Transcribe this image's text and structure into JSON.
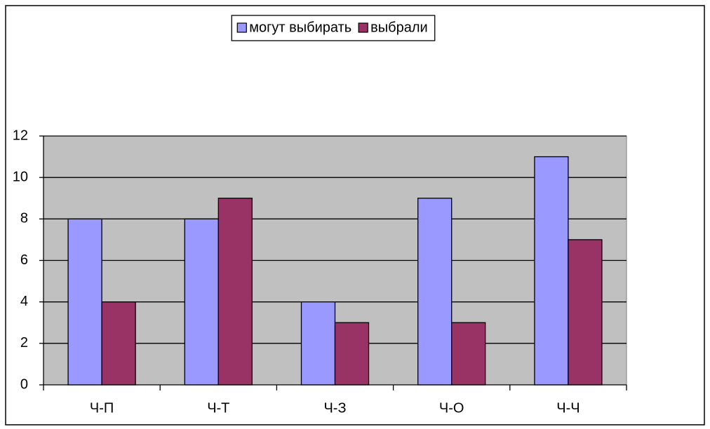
{
  "chart_data": {
    "type": "bar",
    "categories": [
      "Ч-П",
      "Ч-Т",
      "Ч-З",
      "Ч-О",
      "Ч-Ч"
    ],
    "series": [
      {
        "name": "могут выбирать",
        "color": "#9999ff",
        "values": [
          8,
          8,
          4,
          9,
          11
        ]
      },
      {
        "name": "выбрали",
        "color": "#993366",
        "values": [
          4,
          9,
          3,
          3,
          7
        ]
      }
    ],
    "ylim": [
      0,
      12
    ],
    "yticks": [
      0,
      2,
      4,
      6,
      8,
      10,
      12
    ],
    "grid": true,
    "legend": "top",
    "plot_background": "#c0c0c0"
  }
}
